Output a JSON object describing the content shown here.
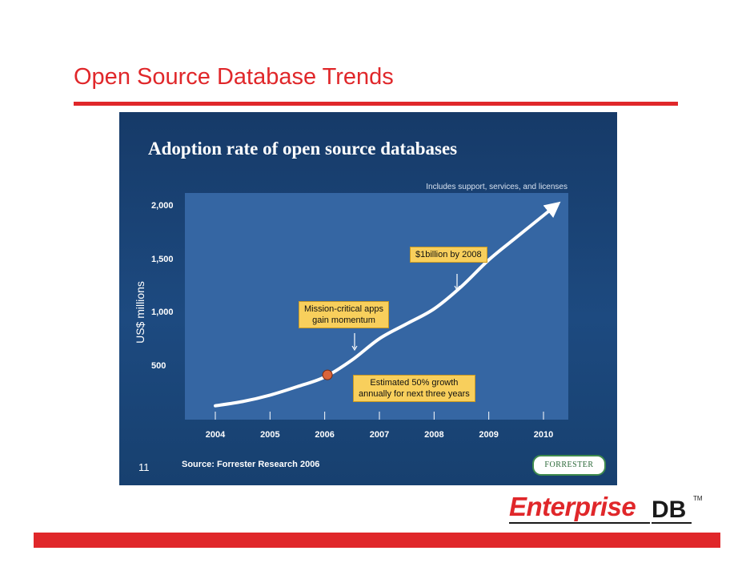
{
  "slide": {
    "title": "Open Source Database Trends",
    "slide_number": "11",
    "source": "Source: Forrester Research 2006",
    "forrester_logo": "FORRESTER",
    "enterprise_logo": {
      "part1": "Enterprise",
      "part2": "DB",
      "tm": "TM"
    },
    "colors": {
      "accent": "#e0272a",
      "panel": "#1d4a80",
      "plot": "#3566a3",
      "callout": "#f8cf5c"
    }
  },
  "chart_data": {
    "type": "line",
    "title": "Adoption rate of open source databases",
    "note": "Includes support, services, and licenses",
    "ylabel": "US$ millions",
    "xlabel": "",
    "x_ticks": [
      "2004",
      "2005",
      "2006",
      "2007",
      "2008",
      "2009",
      "2010"
    ],
    "y_ticks": [
      "2,000",
      "1,500",
      "1,000",
      "500"
    ],
    "y_tick_values": [
      2000,
      1500,
      1000,
      500
    ],
    "xlim": [
      2004,
      2010.2
    ],
    "ylim": [
      0,
      2000
    ],
    "series": [
      {
        "x": [
          2004,
          2004.5,
          2005,
          2005.5,
          2006,
          2006.5,
          2007,
          2007.5,
          2008,
          2008.5,
          2009,
          2009.5,
          2010.2
        ],
        "values": [
          130,
          170,
          230,
          310,
          400,
          560,
          760,
          900,
          1040,
          1250,
          1500,
          1710,
          2000
        ]
      }
    ],
    "highlight_point": {
      "x": 2006.05,
      "value": 420
    },
    "annotations": [
      {
        "lines": [
          "Mission-critical apps",
          "gain momentum"
        ]
      },
      {
        "lines": [
          "Estimated 50% growth",
          "annually for next three years"
        ]
      },
      {
        "lines": [
          "$1billion by 2008"
        ]
      }
    ],
    "grid": false,
    "legend": "none"
  }
}
